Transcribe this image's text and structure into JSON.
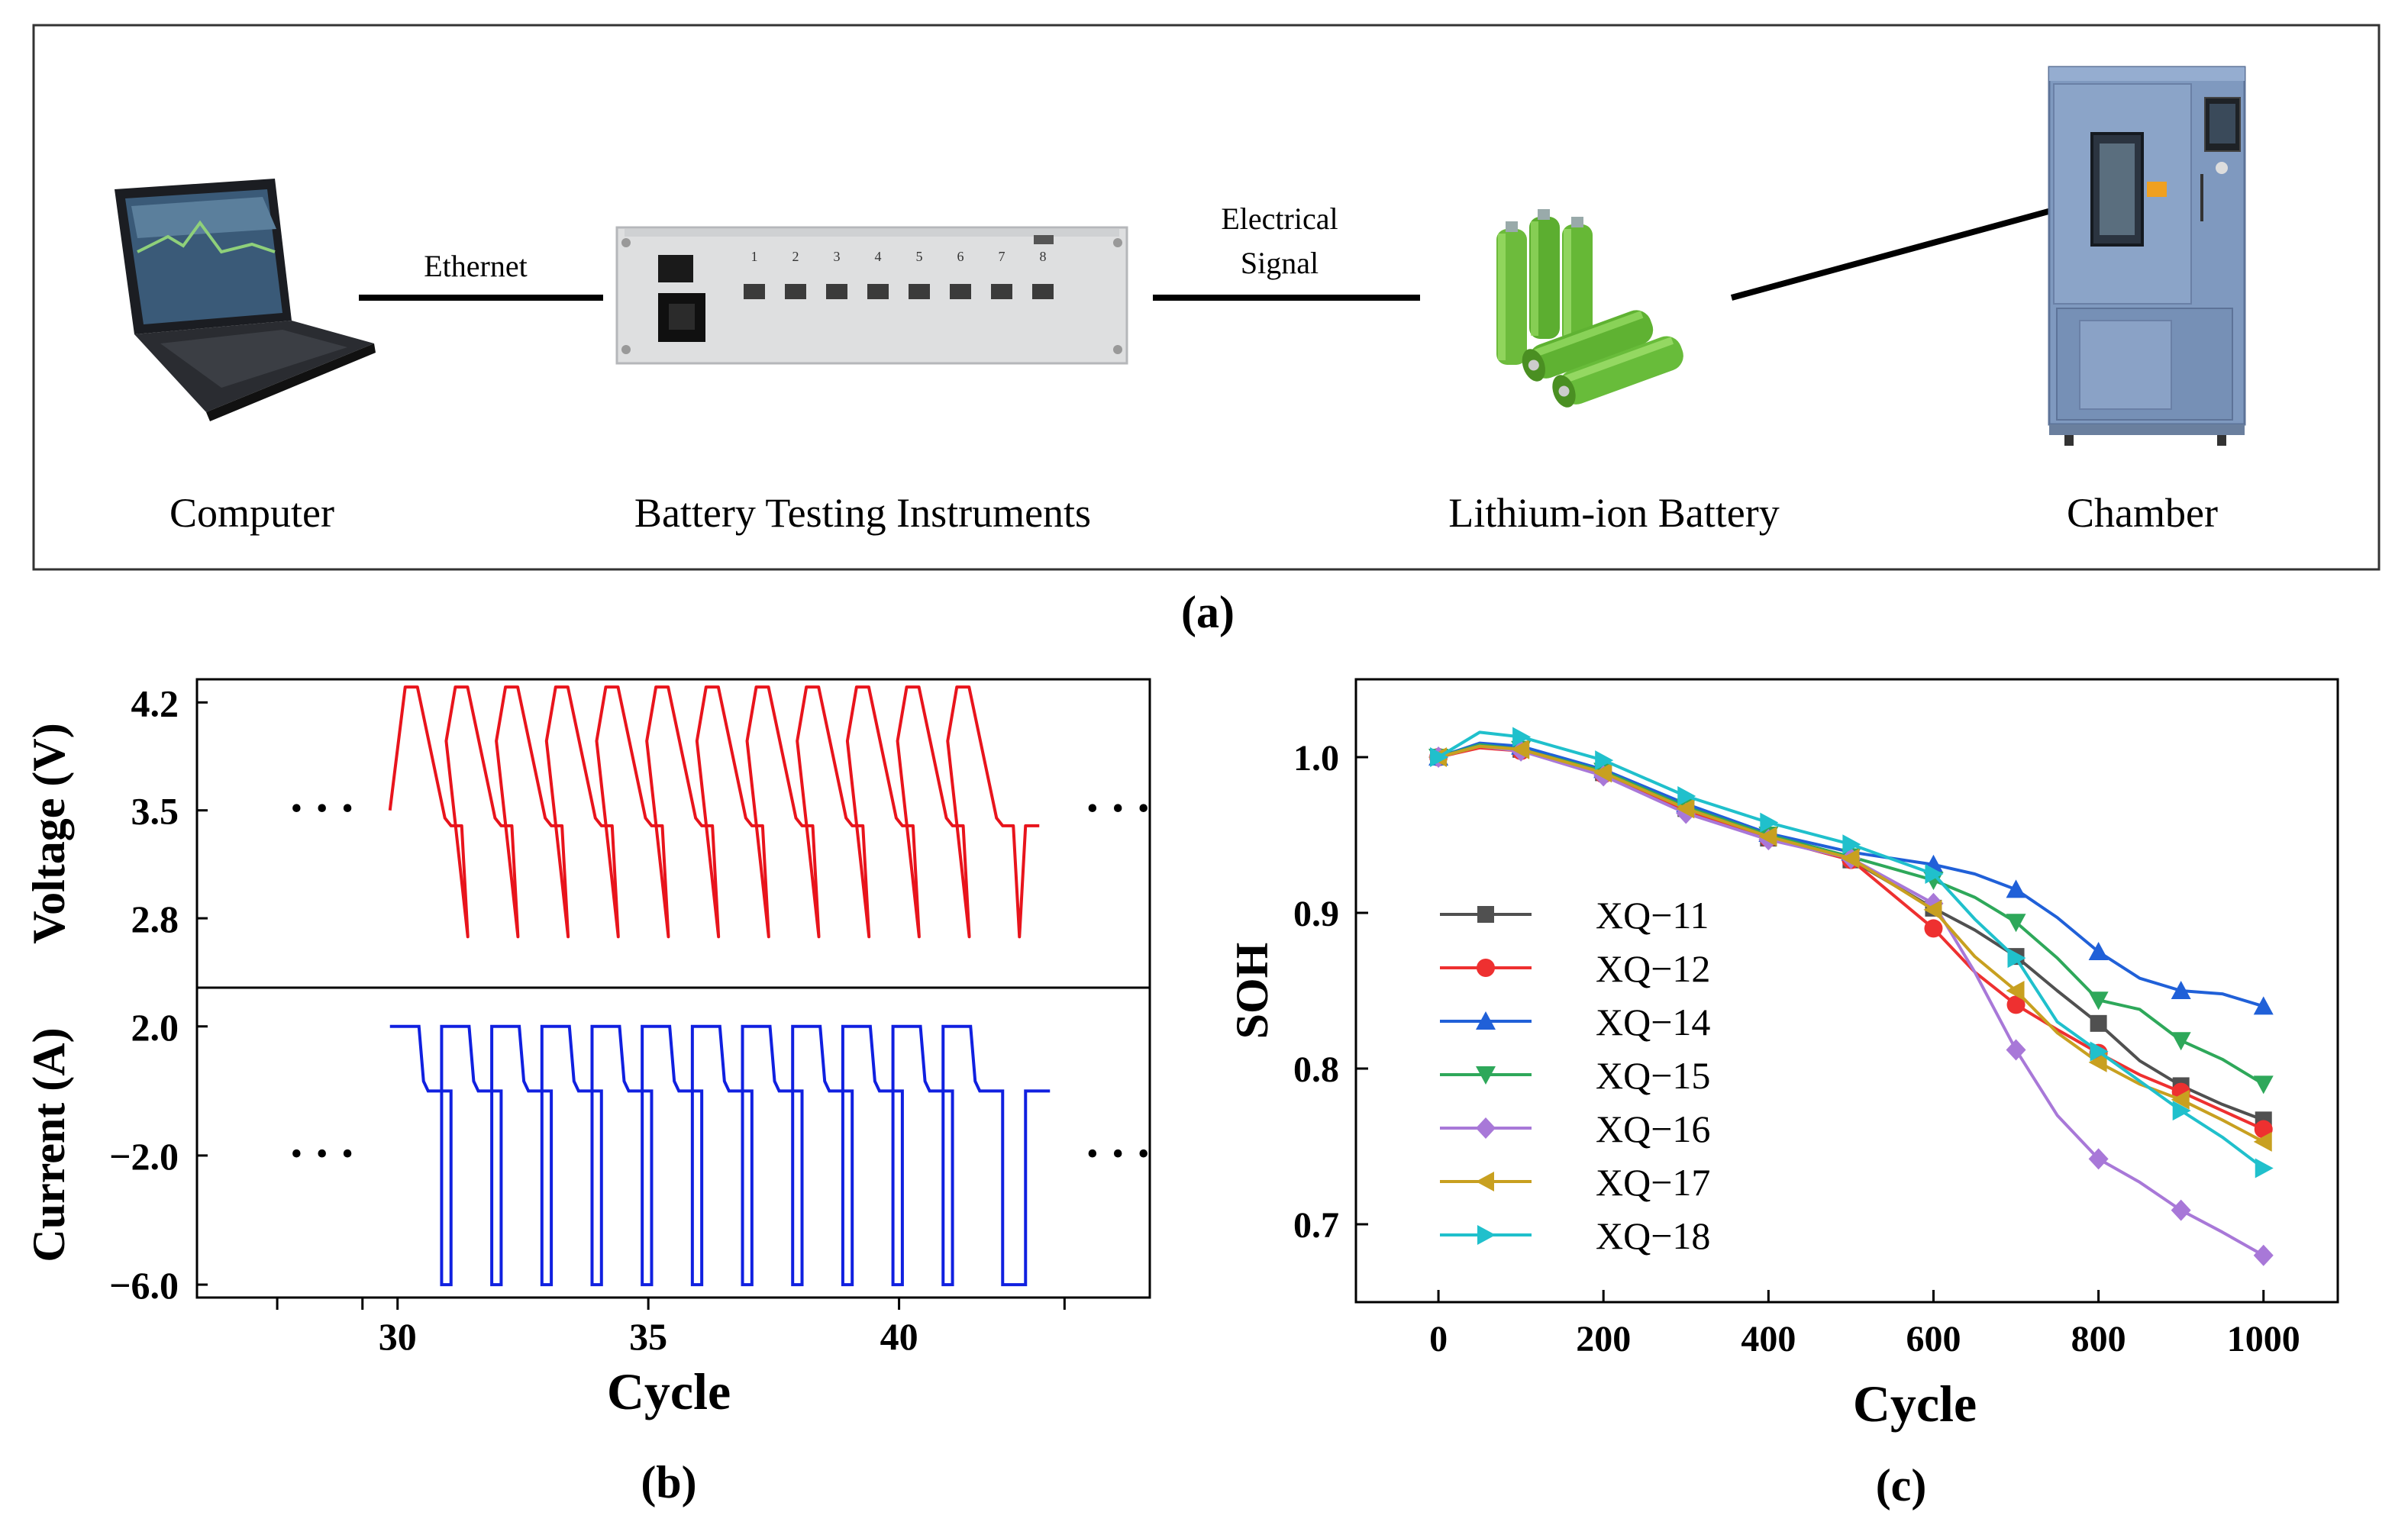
{
  "panel_a": {
    "caption": "(a)",
    "labels": {
      "computer": "Computer",
      "instruments": "Battery Testing Instruments",
      "battery": "Lithium-ion Battery",
      "chamber": "Chamber"
    },
    "links": {
      "ethernet": "Ethernet",
      "signal_line1": "Electrical",
      "signal_line2": "Signal"
    },
    "instrument_channels": [
      "1",
      "2",
      "3",
      "4",
      "5",
      "6",
      "7",
      "8"
    ]
  },
  "colors": {
    "voltage": "#e8141c",
    "current": "#1020e0",
    "XQ-11": "#505050",
    "XQ-12": "#ee3030",
    "XQ-14": "#2060d8",
    "XQ-15": "#2ea85a",
    "XQ-16": "#a878d8",
    "XQ-17": "#c8a020",
    "XQ-18": "#20c0cc"
  },
  "chart_data": [
    {
      "id": "b",
      "type": "line",
      "caption": "(b)",
      "xlabel": "Cycle",
      "xlim": [
        26,
        45
      ],
      "xticks": [
        30,
        35,
        40
      ],
      "ellipsis": "•••",
      "cycles": [
        30,
        31,
        32,
        33,
        34,
        35,
        36,
        37,
        38,
        39,
        40,
        41
      ],
      "voltage": {
        "ylabel": "Voltage (V)",
        "ylim": [
          2.35,
          4.35
        ],
        "yticks": [
          "4.2",
          "3.5",
          "2.8"
        ],
        "ytick_values": [
          4.2,
          3.5,
          2.8
        ],
        "charge_start": 3.5,
        "charge_peak": 4.3,
        "rest_level": 3.4,
        "discharge_min": 2.68
      },
      "current": {
        "ylabel": "Current (A)",
        "ylim": [
          -6.4,
          3.2
        ],
        "yticks": [
          "2.0",
          "−2.0",
          "−6.0"
        ],
        "ytick_values": [
          2.0,
          -2.0,
          -6.0
        ],
        "charge": 2.0,
        "rest": 0.0,
        "discharge": -6.0
      }
    },
    {
      "id": "c",
      "type": "line",
      "caption": "(c)",
      "xlabel": "Cycle",
      "ylabel": "SOH",
      "xlim": [
        -100,
        1090
      ],
      "ylim": [
        0.65,
        1.05
      ],
      "xticks": [
        0,
        200,
        400,
        600,
        800,
        1000
      ],
      "xtick_labels": [
        "0",
        "200",
        "400",
        "600",
        "800",
        "1000"
      ],
      "yticks": [
        0.7,
        0.8,
        0.9,
        1.0
      ],
      "ytick_labels": [
        "0.7",
        "0.8",
        "0.9",
        "1.0"
      ],
      "legend_position": "left",
      "x": [
        0,
        50,
        100,
        200,
        300,
        400,
        500,
        600,
        650,
        700,
        750,
        800,
        850,
        900,
        950,
        1000
      ],
      "marker_x": [
        0,
        100,
        200,
        300,
        400,
        500,
        600,
        700,
        800,
        900,
        1000
      ],
      "series": [
        {
          "name": "XQ−11",
          "key": "XQ-11",
          "marker": "square",
          "values": [
            1.0,
            1.007,
            1.005,
            0.99,
            0.967,
            0.948,
            0.934,
            0.903,
            0.889,
            0.872,
            0.85,
            0.829,
            0.805,
            0.789,
            0.777,
            0.767
          ]
        },
        {
          "name": "XQ−12",
          "key": "XQ-12",
          "marker": "circle",
          "values": [
            1.0,
            1.006,
            1.004,
            0.989,
            0.966,
            0.948,
            0.934,
            0.89,
            0.862,
            0.841,
            0.825,
            0.81,
            0.796,
            0.785,
            0.773,
            0.761
          ]
        },
        {
          "name": "XQ−14",
          "key": "XQ-14",
          "marker": "triangle-up",
          "values": [
            1.0,
            1.009,
            1.007,
            0.992,
            0.97,
            0.951,
            0.939,
            0.931,
            0.925,
            0.915,
            0.897,
            0.875,
            0.858,
            0.85,
            0.848,
            0.84
          ]
        },
        {
          "name": "XQ−15",
          "key": "XQ-15",
          "marker": "triangle-down",
          "values": [
            1.0,
            1.008,
            1.005,
            0.991,
            0.968,
            0.95,
            0.936,
            0.921,
            0.91,
            0.894,
            0.871,
            0.844,
            0.838,
            0.818,
            0.806,
            0.79
          ]
        },
        {
          "name": "XQ−16",
          "key": "XQ-16",
          "marker": "diamond",
          "values": [
            1.0,
            1.007,
            1.004,
            0.988,
            0.964,
            0.947,
            0.935,
            0.906,
            0.862,
            0.812,
            0.77,
            0.742,
            0.727,
            0.709,
            0.695,
            0.68
          ]
        },
        {
          "name": "XQ−17",
          "key": "XQ-17",
          "marker": "triangle-left",
          "values": [
            1.0,
            1.007,
            1.005,
            0.99,
            0.967,
            0.949,
            0.935,
            0.902,
            0.872,
            0.85,
            0.823,
            0.804,
            0.79,
            0.78,
            0.767,
            0.753
          ]
        },
        {
          "name": "XQ−18",
          "key": "XQ-18",
          "marker": "triangle-right",
          "values": [
            1.0,
            1.016,
            1.013,
            0.998,
            0.975,
            0.958,
            0.944,
            0.925,
            0.896,
            0.871,
            0.83,
            0.811,
            0.792,
            0.773,
            0.756,
            0.736
          ]
        }
      ]
    }
  ]
}
